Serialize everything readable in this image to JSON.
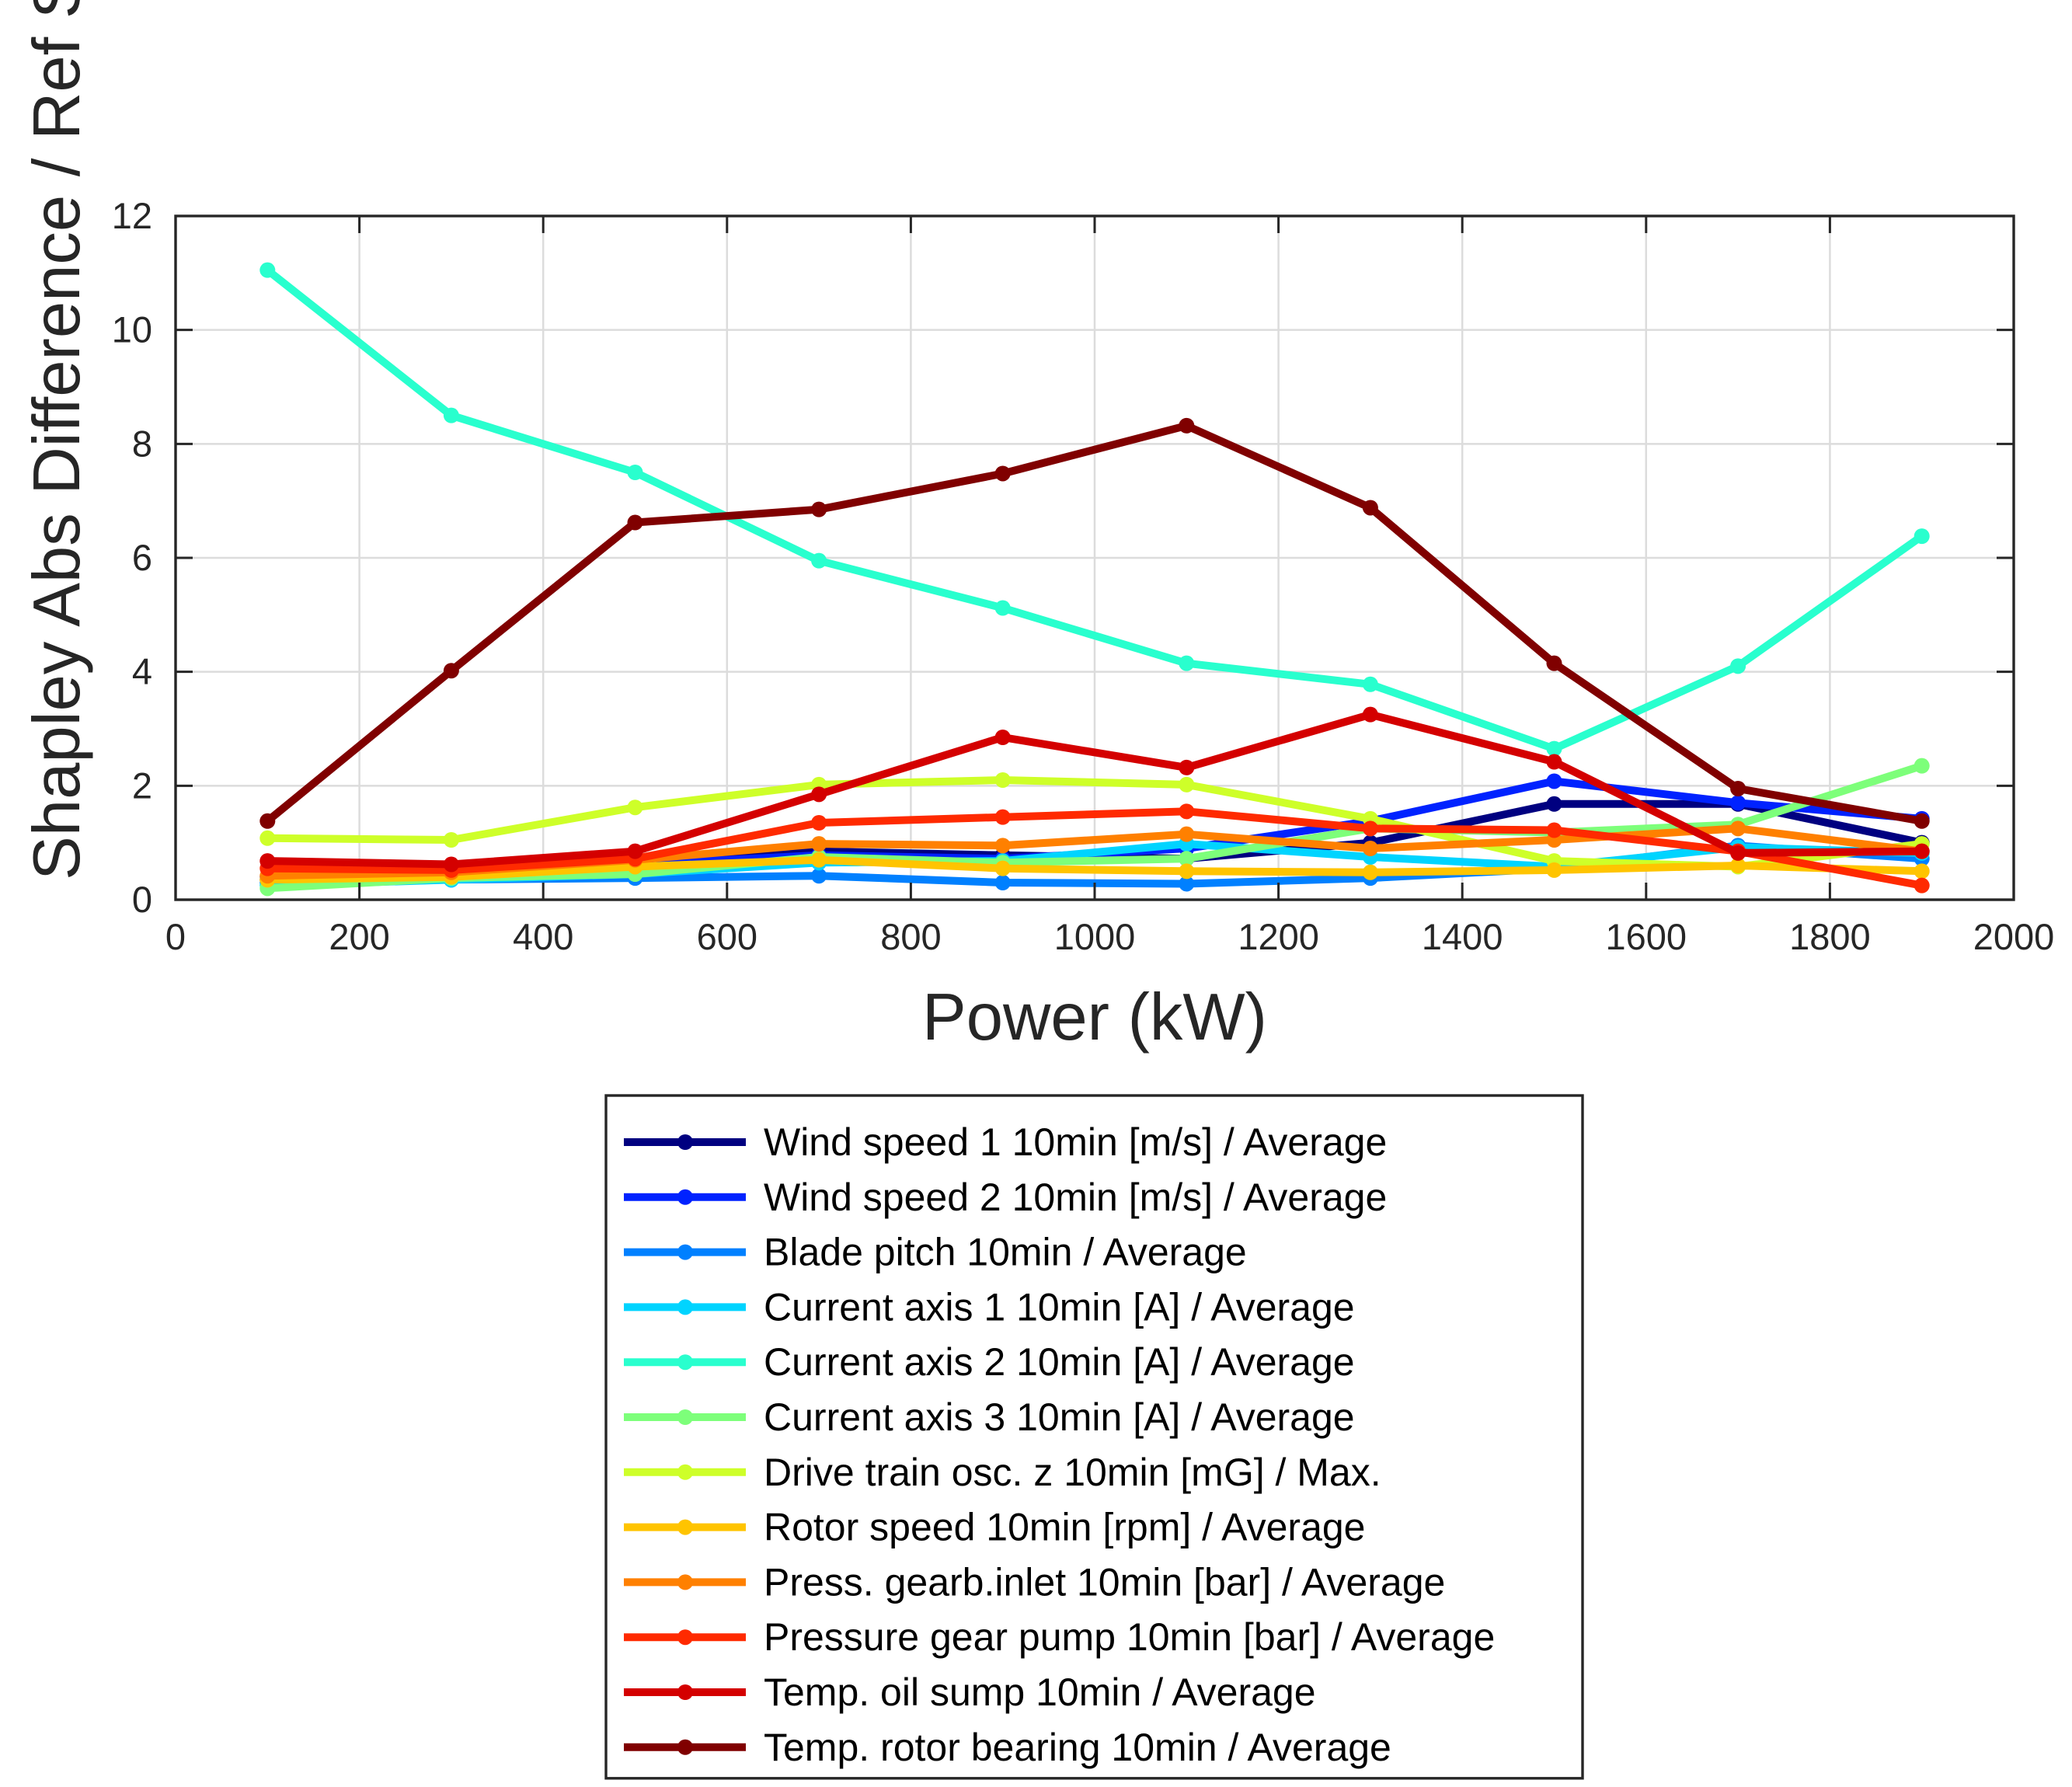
{
  "chart_data": {
    "type": "line",
    "title": "",
    "xlabel": "Power (kW)",
    "ylabel": "Shapley Abs Difference / Ref Sigma",
    "xlim": [
      0,
      2000
    ],
    "ylim": [
      0,
      12
    ],
    "xticks": [
      0,
      200,
      400,
      600,
      800,
      1000,
      1200,
      1400,
      1600,
      1800,
      2000
    ],
    "yticks": [
      0,
      2,
      4,
      6,
      8,
      10,
      12
    ],
    "grid": true,
    "legend_position": "below",
    "x": [
      100,
      300,
      500,
      700,
      900,
      1100,
      1300,
      1500,
      1700,
      1900
    ],
    "series": [
      {
        "name": "Wind speed 1 10min [m/s] / Average",
        "color": "#000080",
        "values": [
          0.35,
          0.38,
          0.6,
          0.85,
          0.78,
          0.72,
          1.0,
          1.68,
          1.68,
          1.0
        ]
      },
      {
        "name": "Wind speed 2 10min [m/s] / Average",
        "color": "#0022ff",
        "values": [
          0.4,
          0.42,
          0.62,
          0.78,
          0.72,
          0.9,
          1.38,
          2.08,
          1.7,
          1.42
        ]
      },
      {
        "name": "Blade pitch 10min  / Average",
        "color": "#0080ff",
        "values": [
          0.3,
          0.35,
          0.38,
          0.42,
          0.3,
          0.28,
          0.38,
          0.55,
          0.95,
          0.72
        ]
      },
      {
        "name": "Current axis 1 10min [A] / Average",
        "color": "#00d4ff",
        "values": [
          0.25,
          0.35,
          0.45,
          0.65,
          0.68,
          0.98,
          0.75,
          0.58,
          0.92,
          0.82
        ]
      },
      {
        "name": "Current axis 2 10min [A] / Average",
        "color": "#29ffce",
        "values": [
          11.05,
          8.5,
          7.5,
          5.95,
          5.12,
          4.15,
          3.78,
          2.65,
          4.1,
          6.38
        ]
      },
      {
        "name": "Current axis 3 10min [A] / Average",
        "color": "#7dff7a",
        "values": [
          0.2,
          0.38,
          0.45,
          0.75,
          0.65,
          0.72,
          1.25,
          1.18,
          1.32,
          2.35
        ]
      },
      {
        "name": "Drive train osc. z 10min [mG] / Max.",
        "color": "#ceff29",
        "values": [
          1.08,
          1.05,
          1.62,
          2.02,
          2.1,
          2.02,
          1.42,
          0.68,
          0.58,
          0.98
        ]
      },
      {
        "name": "Rotor speed 10min [rpm] / Average",
        "color": "#ffc400",
        "values": [
          0.35,
          0.4,
          0.58,
          0.7,
          0.55,
          0.5,
          0.48,
          0.52,
          0.6,
          0.5
        ]
      },
      {
        "name": "Press. gearb.inlet 10min [bar] / Average",
        "color": "#ff8000",
        "values": [
          0.42,
          0.48,
          0.7,
          0.98,
          0.95,
          1.15,
          0.9,
          1.05,
          1.25,
          0.85
        ]
      },
      {
        "name": "Pressure gear pump 10min [bar] / Average",
        "color": "#ff2a00",
        "values": [
          0.55,
          0.52,
          0.72,
          1.35,
          1.45,
          1.55,
          1.25,
          1.22,
          0.85,
          0.25
        ]
      },
      {
        "name": "Temp. oil sump 10min  / Average",
        "color": "#d40000",
        "values": [
          0.68,
          0.62,
          0.85,
          1.85,
          2.85,
          2.32,
          3.25,
          2.42,
          0.82,
          0.85
        ]
      },
      {
        "name": "Temp. rotor bearing 10min  / Average",
        "color": "#800000",
        "values": [
          1.38,
          4.02,
          6.62,
          6.85,
          7.48,
          8.32,
          6.88,
          4.15,
          1.95,
          1.38
        ]
      }
    ]
  }
}
